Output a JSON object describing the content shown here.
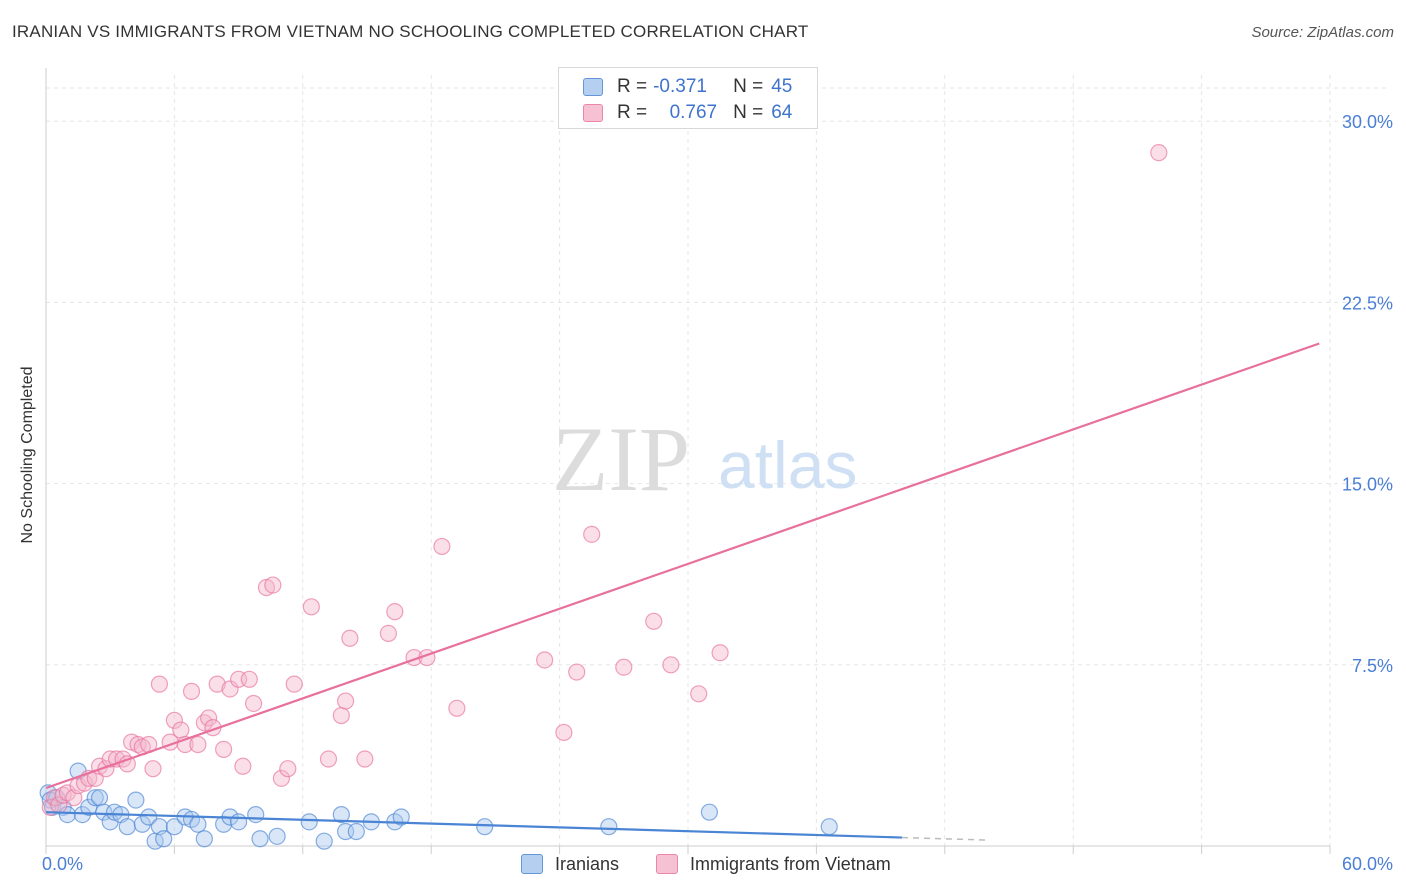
{
  "title": "IRANIAN VS IMMIGRANTS FROM VIETNAM NO SCHOOLING COMPLETED CORRELATION CHART",
  "source": "Source: ZipAtlas.com",
  "watermark": {
    "zip": "ZIP",
    "atlas": "atlas"
  },
  "legend": {
    "rows": [
      {
        "r_label": "R =",
        "r_value": "-0.371",
        "n_label": "N =",
        "n_value": "45"
      },
      {
        "r_label": "R =",
        "r_value": "0.767",
        "n_label": "N =",
        "n_value": "64"
      }
    ]
  },
  "colors": {
    "iranians": "#4a84d4",
    "iranians_fill": "#a9c7ee",
    "vietnam": "#e8709c",
    "vietnam_fill": "#f5b8cc",
    "tick_label": "#4a7fd4",
    "grid": "#e6e6e6"
  },
  "chart_data": {
    "type": "scatter",
    "title": "IRANIAN VS IMMIGRANTS FROM VIETNAM NO SCHOOLING COMPLETED CORRELATION CHART",
    "xlabel": "",
    "ylabel": "No Schooling Completed",
    "xlim": [
      0,
      60
    ],
    "ylim": [
      0,
      31.5
    ],
    "x_tick_labels": [
      "0.0%",
      "60.0%"
    ],
    "y_ticks": [
      {
        "value": 7.5,
        "label": "7.5%"
      },
      {
        "value": 15,
        "label": "15.0%"
      },
      {
        "value": 22.5,
        "label": "22.5%"
      },
      {
        "value": 30,
        "label": "30.0%"
      }
    ],
    "grid": true,
    "legend_position": "top-center",
    "series": [
      {
        "name": "Iranians",
        "r": -0.371,
        "n": 45,
        "trend": {
          "x0": 0,
          "y0": 1.4,
          "x1": 40,
          "y1": 0.35,
          "dashed_to_x": 44
        },
        "points": [
          [
            0.1,
            2.2
          ],
          [
            0.2,
            1.9
          ],
          [
            0.3,
            1.6
          ],
          [
            0.5,
            2.0
          ],
          [
            0.8,
            1.6
          ],
          [
            1.0,
            1.3
          ],
          [
            1.5,
            3.1
          ],
          [
            1.7,
            1.3
          ],
          [
            2.0,
            1.6
          ],
          [
            2.3,
            2.0
          ],
          [
            2.5,
            2.0
          ],
          [
            2.7,
            1.4
          ],
          [
            3.0,
            1.0
          ],
          [
            3.2,
            1.4
          ],
          [
            3.5,
            1.3
          ],
          [
            3.8,
            0.8
          ],
          [
            4.2,
            1.9
          ],
          [
            4.5,
            0.9
          ],
          [
            4.8,
            1.2
          ],
          [
            5.1,
            0.2
          ],
          [
            5.3,
            0.8
          ],
          [
            5.5,
            0.3
          ],
          [
            6.0,
            0.8
          ],
          [
            6.5,
            1.2
          ],
          [
            6.8,
            1.1
          ],
          [
            7.1,
            0.9
          ],
          [
            7.4,
            0.3
          ],
          [
            8.3,
            0.9
          ],
          [
            8.6,
            1.2
          ],
          [
            9.0,
            1.0
          ],
          [
            9.8,
            1.3
          ],
          [
            10.0,
            0.3
          ],
          [
            10.8,
            0.4
          ],
          [
            12.3,
            1.0
          ],
          [
            13.0,
            0.2
          ],
          [
            13.8,
            1.3
          ],
          [
            14.0,
            0.6
          ],
          [
            14.5,
            0.6
          ],
          [
            15.2,
            1.0
          ],
          [
            16.3,
            1.0
          ],
          [
            16.6,
            1.2
          ],
          [
            20.5,
            0.8
          ],
          [
            26.3,
            0.8
          ],
          [
            31.0,
            1.4
          ],
          [
            36.6,
            0.8
          ]
        ]
      },
      {
        "name": "Immigrants from Vietnam",
        "r": 0.767,
        "n": 64,
        "trend": {
          "x0": 0,
          "y0": 2.4,
          "x1": 59.5,
          "y1": 20.8
        },
        "points": [
          [
            0.2,
            1.6
          ],
          [
            0.4,
            2.0
          ],
          [
            0.6,
            1.7
          ],
          [
            0.8,
            2.1
          ],
          [
            1.0,
            2.2
          ],
          [
            1.3,
            2.0
          ],
          [
            1.5,
            2.5
          ],
          [
            1.8,
            2.6
          ],
          [
            2.0,
            2.8
          ],
          [
            2.3,
            2.8
          ],
          [
            2.5,
            3.3
          ],
          [
            2.8,
            3.2
          ],
          [
            3.0,
            3.6
          ],
          [
            3.3,
            3.6
          ],
          [
            3.6,
            3.6
          ],
          [
            3.8,
            3.4
          ],
          [
            4.0,
            4.3
          ],
          [
            4.3,
            4.2
          ],
          [
            4.5,
            4.1
          ],
          [
            4.8,
            4.2
          ],
          [
            5.0,
            3.2
          ],
          [
            5.3,
            6.7
          ],
          [
            5.8,
            4.3
          ],
          [
            6.0,
            5.2
          ],
          [
            6.3,
            4.8
          ],
          [
            6.5,
            4.2
          ],
          [
            6.8,
            6.4
          ],
          [
            7.1,
            4.2
          ],
          [
            7.4,
            5.1
          ],
          [
            7.6,
            5.3
          ],
          [
            7.8,
            4.9
          ],
          [
            8.0,
            6.7
          ],
          [
            8.3,
            4.0
          ],
          [
            8.6,
            6.5
          ],
          [
            9.0,
            6.9
          ],
          [
            9.2,
            3.3
          ],
          [
            9.5,
            6.9
          ],
          [
            9.7,
            5.9
          ],
          [
            10.3,
            10.7
          ],
          [
            10.6,
            10.8
          ],
          [
            11.0,
            2.8
          ],
          [
            11.3,
            3.2
          ],
          [
            11.6,
            6.7
          ],
          [
            12.4,
            9.9
          ],
          [
            13.2,
            3.6
          ],
          [
            13.8,
            5.4
          ],
          [
            14.0,
            6.0
          ],
          [
            14.2,
            8.6
          ],
          [
            14.9,
            3.6
          ],
          [
            16.0,
            8.8
          ],
          [
            16.3,
            9.7
          ],
          [
            17.2,
            7.8
          ],
          [
            17.8,
            7.8
          ],
          [
            18.5,
            12.4
          ],
          [
            19.2,
            5.7
          ],
          [
            23.3,
            7.7
          ],
          [
            24.2,
            4.7
          ],
          [
            24.8,
            7.2
          ],
          [
            25.5,
            12.9
          ],
          [
            27.0,
            7.4
          ],
          [
            28.4,
            9.3
          ],
          [
            29.2,
            7.5
          ],
          [
            30.5,
            6.3
          ],
          [
            31.5,
            8.0
          ],
          [
            52.0,
            28.7
          ]
        ]
      }
    ]
  }
}
